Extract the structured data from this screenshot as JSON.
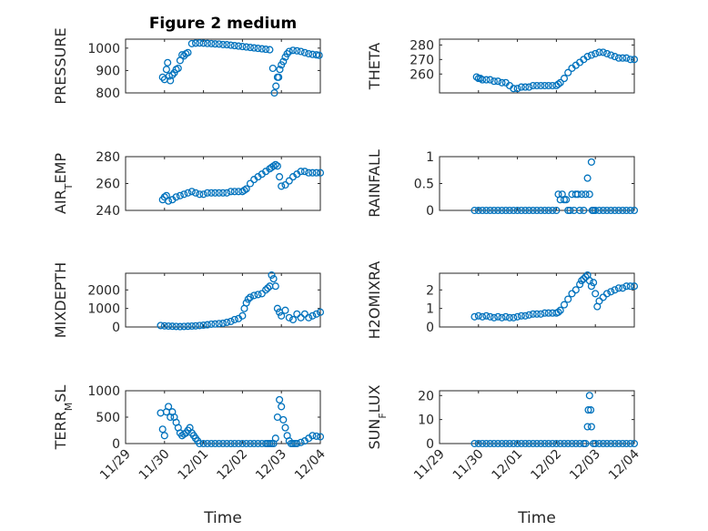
{
  "figure": {
    "title": "Figure 2 medium"
  },
  "colors": {
    "marker": "#0072BD",
    "axis": "#262626",
    "grid": "#d4d4d4"
  },
  "chart_data": [
    {
      "type": "scatter",
      "title": "Figure 2 medium",
      "ylabel": "PRESSURE",
      "xlabel": "",
      "xlim": [
        0,
        5
      ],
      "ylim": [
        800,
        1040
      ],
      "yticks": [
        800,
        900,
        1000
      ],
      "yticklabels": [
        "800",
        "900",
        "1000"
      ],
      "grid": true,
      "x": [
        0.95,
        1.0,
        1.05,
        1.08,
        1.12,
        1.15,
        1.2,
        1.25,
        1.3,
        1.35,
        1.4,
        1.45,
        1.5,
        1.55,
        1.6,
        1.7,
        1.8,
        1.9,
        2.0,
        2.1,
        2.2,
        2.3,
        2.4,
        2.5,
        2.6,
        2.7,
        2.8,
        2.9,
        3.0,
        3.1,
        3.2,
        3.3,
        3.4,
        3.5,
        3.6,
        3.7,
        3.78,
        3.82,
        3.86,
        3.9,
        3.93,
        3.96,
        4.0,
        4.05,
        4.1,
        4.15,
        4.2,
        4.3,
        4.4,
        4.5,
        4.6,
        4.7,
        4.8,
        4.9,
        4.97
      ],
      "y": [
        870,
        860,
        905,
        935,
        875,
        855,
        880,
        890,
        905,
        910,
        945,
        970,
        965,
        975,
        980,
        1020,
        1022,
        1023,
        1022,
        1021,
        1020,
        1019,
        1018,
        1016,
        1015,
        1013,
        1011,
        1009,
        1007,
        1005,
        1003,
        1001,
        999,
        997,
        995,
        993,
        910,
        800,
        830,
        870,
        870,
        905,
        925,
        940,
        960,
        975,
        985,
        990,
        988,
        985,
        980,
        975,
        972,
        970,
        968
      ]
    },
    {
      "type": "scatter",
      "ylabel": "THETA",
      "xlabel": "",
      "xlim": [
        0,
        5
      ],
      "ylim": [
        247,
        284
      ],
      "yticks": [
        260,
        270,
        280
      ],
      "yticklabels": [
        "260",
        "270",
        "280"
      ],
      "grid": true,
      "x": [
        0.95,
        1.0,
        1.05,
        1.1,
        1.2,
        1.3,
        1.4,
        1.5,
        1.6,
        1.7,
        1.8,
        1.9,
        2.0,
        2.1,
        2.2,
        2.3,
        2.4,
        2.5,
        2.6,
        2.7,
        2.8,
        2.9,
        3.0,
        3.05,
        3.1,
        3.2,
        3.3,
        3.4,
        3.5,
        3.6,
        3.7,
        3.8,
        3.9,
        4.0,
        4.1,
        4.2,
        4.3,
        4.4,
        4.5,
        4.6,
        4.7,
        4.8,
        4.9,
        5.0
      ],
      "y": [
        258,
        257,
        257,
        256,
        256,
        256,
        255,
        255,
        254,
        254,
        252,
        250,
        250,
        251,
        251,
        251,
        252,
        252,
        252,
        252,
        252,
        252,
        252,
        253,
        254,
        257,
        261,
        264,
        266,
        268,
        270,
        272,
        273,
        274,
        275,
        275,
        274,
        273,
        272,
        271,
        271,
        271,
        270,
        270
      ]
    },
    {
      "type": "scatter",
      "ylabel": "AIR_T_EMP",
      "xlabel": "",
      "xlim": [
        0,
        5
      ],
      "ylim": [
        240,
        280
      ],
      "yticks": [
        240,
        260,
        280
      ],
      "yticklabels": [
        "240",
        "260",
        "280"
      ],
      "grid": true,
      "x": [
        0.95,
        1.0,
        1.05,
        1.1,
        1.2,
        1.3,
        1.4,
        1.5,
        1.6,
        1.7,
        1.8,
        1.9,
        2.0,
        2.1,
        2.2,
        2.3,
        2.4,
        2.5,
        2.6,
        2.7,
        2.8,
        2.9,
        3.0,
        3.05,
        3.1,
        3.2,
        3.3,
        3.4,
        3.5,
        3.6,
        3.7,
        3.75,
        3.8,
        3.85,
        3.9,
        3.95,
        4.0,
        4.1,
        4.2,
        4.3,
        4.4,
        4.5,
        4.6,
        4.7,
        4.8,
        4.9,
        5.0
      ],
      "y": [
        248,
        250,
        251,
        247,
        248,
        250,
        251,
        252,
        253,
        254,
        253,
        252,
        252,
        253,
        253,
        253,
        253,
        253,
        253,
        254,
        254,
        254,
        254,
        255,
        256,
        260,
        263,
        265,
        267,
        269,
        271,
        272,
        273,
        274,
        273,
        265,
        258,
        259,
        262,
        265,
        267,
        269,
        269,
        268,
        268,
        268,
        268
      ]
    },
    {
      "type": "scatter",
      "ylabel": "RAINFALL",
      "xlabel": "",
      "xlim": [
        0,
        5
      ],
      "ylim": [
        0,
        1
      ],
      "yticks": [
        0,
        0.5,
        1
      ],
      "yticklabels": [
        "0",
        "0.5",
        "1"
      ],
      "grid": true,
      "x": [
        0.9,
        1.0,
        1.1,
        1.2,
        1.3,
        1.4,
        1.5,
        1.6,
        1.7,
        1.8,
        1.9,
        2.0,
        2.1,
        2.2,
        2.3,
        2.4,
        2.5,
        2.6,
        2.7,
        2.8,
        2.9,
        3.0,
        3.05,
        3.1,
        3.15,
        3.2,
        3.25,
        3.3,
        3.35,
        3.4,
        3.45,
        3.5,
        3.55,
        3.6,
        3.65,
        3.7,
        3.75,
        3.8,
        3.85,
        3.9,
        3.92,
        3.95,
        4.0,
        4.1,
        4.2,
        4.3,
        4.4,
        4.5,
        4.6,
        4.7,
        4.8,
        4.9,
        5.0
      ],
      "y": [
        0,
        0,
        0,
        0,
        0,
        0,
        0,
        0,
        0,
        0,
        0,
        0,
        0,
        0,
        0,
        0,
        0,
        0,
        0,
        0,
        0,
        0,
        0.3,
        0.2,
        0.3,
        0.2,
        0.2,
        0,
        0,
        0.3,
        0,
        0.3,
        0.3,
        0,
        0.3,
        0,
        0.3,
        0.6,
        0.3,
        0.9,
        0,
        0,
        0,
        0,
        0,
        0,
        0,
        0,
        0,
        0,
        0,
        0,
        0
      ]
    },
    {
      "type": "scatter",
      "ylabel": "MIXDEPTH",
      "xlabel": "",
      "xlim": [
        0,
        5
      ],
      "ylim": [
        0,
        2900
      ],
      "yticks": [
        0,
        1000,
        2000
      ],
      "yticklabels": [
        "0",
        "1000",
        "2000"
      ],
      "grid": true,
      "x": [
        0.9,
        1.0,
        1.1,
        1.2,
        1.3,
        1.4,
        1.5,
        1.6,
        1.7,
        1.8,
        1.9,
        2.0,
        2.1,
        2.2,
        2.3,
        2.4,
        2.5,
        2.6,
        2.7,
        2.8,
        2.9,
        3.0,
        3.05,
        3.1,
        3.15,
        3.2,
        3.3,
        3.4,
        3.5,
        3.6,
        3.65,
        3.7,
        3.75,
        3.8,
        3.85,
        3.9,
        3.95,
        4.0,
        4.1,
        4.2,
        4.3,
        4.4,
        4.5,
        4.6,
        4.7,
        4.8,
        4.9,
        5.0
      ],
      "y": [
        80,
        60,
        50,
        40,
        30,
        20,
        30,
        40,
        50,
        60,
        80,
        100,
        120,
        150,
        160,
        180,
        200,
        250,
        300,
        400,
        450,
        600,
        1000,
        1300,
        1500,
        1600,
        1700,
        1750,
        1800,
        2000,
        2100,
        2200,
        2800,
        2600,
        2200,
        1000,
        800,
        600,
        900,
        500,
        400,
        700,
        500,
        700,
        500,
        600,
        700,
        800
      ]
    },
    {
      "type": "scatter",
      "ylabel": "H2OMIXRA",
      "xlabel": "",
      "xlim": [
        0,
        5
      ],
      "ylim": [
        0,
        2.9
      ],
      "yticks": [
        0,
        1,
        2
      ],
      "yticklabels": [
        "0",
        "1",
        "2"
      ],
      "grid": true,
      "x": [
        0.9,
        1.0,
        1.1,
        1.2,
        1.3,
        1.4,
        1.5,
        1.6,
        1.7,
        1.8,
        1.9,
        2.0,
        2.1,
        2.2,
        2.3,
        2.4,
        2.5,
        2.6,
        2.7,
        2.8,
        2.9,
        3.0,
        3.05,
        3.1,
        3.2,
        3.3,
        3.4,
        3.5,
        3.6,
        3.65,
        3.7,
        3.75,
        3.8,
        3.85,
        3.9,
        3.95,
        4.0,
        4.05,
        4.1,
        4.2,
        4.3,
        4.4,
        4.5,
        4.6,
        4.7,
        4.8,
        4.9,
        5.0
      ],
      "y": [
        0.55,
        0.6,
        0.55,
        0.6,
        0.55,
        0.5,
        0.55,
        0.5,
        0.55,
        0.5,
        0.5,
        0.55,
        0.6,
        0.6,
        0.65,
        0.7,
        0.7,
        0.7,
        0.75,
        0.75,
        0.75,
        0.75,
        0.8,
        0.9,
        1.2,
        1.5,
        1.8,
        2.0,
        2.3,
        2.5,
        2.6,
        2.7,
        2.8,
        2.5,
        2.2,
        2.4,
        1.8,
        1.1,
        1.4,
        1.6,
        1.8,
        1.9,
        2.0,
        2.1,
        2.1,
        2.2,
        2.2,
        2.2
      ]
    },
    {
      "type": "scatter",
      "ylabel": "TERR_M_SL",
      "xlabel": "Time",
      "xlim": [
        0,
        5
      ],
      "ylim": [
        0,
        1000
      ],
      "yticks": [
        0,
        500,
        1000
      ],
      "yticklabels": [
        "0",
        "500",
        "1000"
      ],
      "xticks": [
        0,
        1,
        2,
        3,
        4,
        5
      ],
      "xticklabels": [
        "11/29",
        "11/30",
        "12/01",
        "12/02",
        "12/03",
        "12/04"
      ],
      "grid": true,
      "x": [
        0.9,
        0.95,
        1.0,
        1.05,
        1.1,
        1.15,
        1.2,
        1.25,
        1.3,
        1.35,
        1.4,
        1.45,
        1.5,
        1.55,
        1.6,
        1.65,
        1.7,
        1.75,
        1.8,
        1.85,
        1.9,
        2.0,
        2.1,
        2.2,
        2.3,
        2.4,
        2.5,
        2.6,
        2.7,
        2.8,
        2.9,
        3.0,
        3.1,
        3.2,
        3.3,
        3.4,
        3.5,
        3.6,
        3.65,
        3.7,
        3.75,
        3.8,
        3.85,
        3.9,
        3.95,
        4.0,
        4.05,
        4.1,
        4.15,
        4.2,
        4.25,
        4.3,
        4.35,
        4.4,
        4.5,
        4.6,
        4.7,
        4.8,
        4.9,
        5.0
      ],
      "y": [
        580,
        270,
        150,
        600,
        700,
        500,
        600,
        500,
        400,
        300,
        200,
        150,
        180,
        200,
        250,
        300,
        200,
        150,
        100,
        50,
        0,
        0,
        0,
        0,
        0,
        0,
        0,
        0,
        0,
        0,
        0,
        0,
        0,
        0,
        0,
        0,
        0,
        0,
        0,
        0,
        0,
        0,
        100,
        500,
        830,
        700,
        450,
        300,
        150,
        50,
        0,
        0,
        0,
        0,
        20,
        50,
        100,
        150,
        140,
        130
      ]
    },
    {
      "type": "scatter",
      "ylabel": "SUN_F_LUX",
      "xlabel": "Time",
      "xlim": [
        0,
        5
      ],
      "ylim": [
        0,
        22
      ],
      "yticks": [
        0,
        10,
        20
      ],
      "yticklabels": [
        "0",
        "10",
        "20"
      ],
      "xticks": [
        0,
        1,
        2,
        3,
        4,
        5
      ],
      "xticklabels": [
        "11/29",
        "11/30",
        "12/01",
        "12/02",
        "12/03",
        "12/04"
      ],
      "grid": true,
      "x": [
        0.9,
        1.0,
        1.1,
        1.2,
        1.3,
        1.4,
        1.5,
        1.6,
        1.7,
        1.8,
        1.9,
        2.0,
        2.1,
        2.2,
        2.3,
        2.4,
        2.5,
        2.6,
        2.7,
        2.8,
        2.9,
        3.0,
        3.1,
        3.2,
        3.3,
        3.4,
        3.5,
        3.6,
        3.7,
        3.75,
        3.8,
        3.82,
        3.85,
        3.88,
        3.9,
        3.95,
        4.0,
        4.1,
        4.2,
        4.3,
        4.4,
        4.5,
        4.6,
        4.7,
        4.8,
        4.9,
        5.0
      ],
      "y": [
        0,
        0,
        0,
        0,
        0,
        0,
        0,
        0,
        0,
        0,
        0,
        0,
        0,
        0,
        0,
        0,
        0,
        0,
        0,
        0,
        0,
        0,
        0,
        0,
        0,
        0,
        0,
        0,
        0,
        0,
        7,
        14,
        20,
        14,
        7,
        0,
        0,
        0,
        0,
        0,
        0,
        0,
        0,
        0,
        0,
        0,
        0
      ]
    }
  ]
}
